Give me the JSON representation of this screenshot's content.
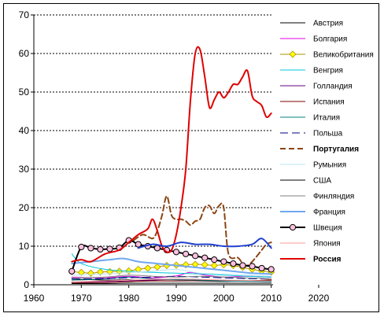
{
  "chart_data": {
    "type": "line",
    "title": "",
    "xlabel": "",
    "ylabel": "",
    "xlim": [
      1960,
      2020
    ],
    "ylim": [
      0,
      70
    ],
    "x_ticks": [
      "1960",
      "1970",
      "1980",
      "1990",
      "2000",
      "2010",
      "2020"
    ],
    "y_ticks": [
      "0",
      "10",
      "20",
      "30",
      "40",
      "50",
      "60",
      "70"
    ],
    "grid": "horizontal dashed",
    "legend_position": "right",
    "series": [
      {
        "name": "Австрия",
        "color": "#000000",
        "dash": "solid",
        "width": 1,
        "marker": "none",
        "bold": false,
        "points": [
          [
            1968,
            1.5
          ],
          [
            1975,
            1.2
          ],
          [
            1980,
            1.3
          ],
          [
            1985,
            1.0
          ],
          [
            1990,
            1.0
          ],
          [
            1995,
            1.0
          ],
          [
            2000,
            0.9
          ],
          [
            2005,
            1.0
          ],
          [
            2010,
            1.2
          ]
        ]
      },
      {
        "name": "Болгария",
        "color": "#e000e0",
        "dash": "solid",
        "width": 1,
        "marker": "none",
        "bold": false,
        "points": [
          [
            1968,
            2.0
          ],
          [
            1975,
            1.8
          ],
          [
            1980,
            2.2
          ],
          [
            1985,
            1.8
          ],
          [
            1990,
            2.3
          ],
          [
            1993,
            3.2
          ],
          [
            1996,
            2.5
          ],
          [
            2000,
            2.0
          ],
          [
            2005,
            2.2
          ],
          [
            2010,
            2.0
          ]
        ]
      },
      {
        "name": "Великобритания",
        "color": "#b09000",
        "fill": "#ffff00",
        "dash": "solid",
        "width": 1,
        "marker": "diamond",
        "bold": false,
        "points": [
          [
            1968,
            3.4
          ],
          [
            1970,
            3.2
          ],
          [
            1972,
            3.0
          ],
          [
            1974,
            3.3
          ],
          [
            1976,
            3.4
          ],
          [
            1978,
            3.5
          ],
          [
            1980,
            3.6
          ],
          [
            1982,
            4.0
          ],
          [
            1984,
            4.3
          ],
          [
            1986,
            4.6
          ],
          [
            1988,
            5.0
          ],
          [
            1990,
            5.1
          ],
          [
            1992,
            5.2
          ],
          [
            1994,
            5.3
          ],
          [
            1996,
            5.2
          ],
          [
            1998,
            5.0
          ],
          [
            2000,
            5.2
          ],
          [
            2002,
            5.0
          ],
          [
            2004,
            4.5
          ],
          [
            2006,
            4.0
          ],
          [
            2008,
            3.6
          ],
          [
            2010,
            3.3
          ]
        ]
      },
      {
        "name": "Венгрия",
        "color": "#00c8d8",
        "dash": "solid",
        "width": 1,
        "marker": "none",
        "bold": false,
        "points": [
          [
            1968,
            8.0
          ],
          [
            1970,
            5.5
          ],
          [
            1975,
            4.0
          ],
          [
            1980,
            3.5
          ],
          [
            1985,
            3.2
          ],
          [
            1990,
            3.0
          ],
          [
            1995,
            2.8
          ],
          [
            2000,
            2.5
          ],
          [
            2005,
            2.2
          ],
          [
            2010,
            2.0
          ]
        ]
      },
      {
        "name": "Голландия",
        "color": "#600080",
        "dash": "solid",
        "width": 1,
        "marker": "none",
        "bold": false,
        "points": [
          [
            1968,
            0.8
          ],
          [
            1975,
            0.8
          ],
          [
            1980,
            1.0
          ],
          [
            1985,
            1.2
          ],
          [
            1990,
            1.4
          ],
          [
            1995,
            1.3
          ],
          [
            2000,
            1.2
          ],
          [
            2005,
            1.0
          ],
          [
            2010,
            0.9
          ]
        ]
      },
      {
        "name": "Испания",
        "color": "#800000",
        "dash": "solid",
        "width": 1,
        "marker": "none",
        "bold": false,
        "points": [
          [
            1968,
            0.5
          ],
          [
            1975,
            0.6
          ],
          [
            1980,
            0.8
          ],
          [
            1985,
            1.0
          ],
          [
            1990,
            1.0
          ],
          [
            1995,
            1.1
          ],
          [
            2000,
            1.0
          ],
          [
            2005,
            1.0
          ],
          [
            2010,
            1.3
          ]
        ]
      },
      {
        "name": "Италия",
        "color": "#008080",
        "dash": "solid",
        "width": 1,
        "marker": "none",
        "bold": false,
        "points": [
          [
            1968,
            1.2
          ],
          [
            1975,
            1.5
          ],
          [
            1980,
            2.0
          ],
          [
            1985,
            1.5
          ],
          [
            1990,
            1.3
          ],
          [
            1995,
            1.2
          ],
          [
            2000,
            1.0
          ],
          [
            2005,
            0.9
          ],
          [
            2010,
            0.8
          ]
        ]
      },
      {
        "name": "Польша",
        "color": "#000080",
        "dash": "longdash",
        "width": 1,
        "marker": "none",
        "bold": false,
        "points": [
          [
            1968,
            1.5
          ],
          [
            1975,
            1.6
          ],
          [
            1980,
            1.8
          ],
          [
            1985,
            2.0
          ],
          [
            1990,
            2.2
          ],
          [
            1995,
            2.0
          ],
          [
            2000,
            1.8
          ],
          [
            2005,
            1.6
          ],
          [
            2010,
            1.6
          ]
        ]
      },
      {
        "name": "Португалия",
        "color": "#8b4513",
        "dash": "dash",
        "width": 2,
        "marker": "none",
        "bold": true,
        "points": [
          [
            1981,
            11.5
          ],
          [
            1983,
            13.0
          ],
          [
            1985,
            12.0
          ],
          [
            1986,
            14.0
          ],
          [
            1987,
            18.0
          ],
          [
            1988,
            23.0
          ],
          [
            1989,
            18.0
          ],
          [
            1990,
            17.0
          ],
          [
            1991,
            17.0
          ],
          [
            1992,
            16.5
          ],
          [
            1993,
            15.5
          ],
          [
            1994,
            16.5
          ],
          [
            1995,
            17.0
          ],
          [
            1996,
            20.0
          ],
          [
            1997,
            20.5
          ],
          [
            1998,
            18.5
          ],
          [
            1999,
            20.5
          ],
          [
            2000,
            20.0
          ],
          [
            2001,
            8.0
          ],
          [
            2003,
            7.0
          ],
          [
            2004,
            5.5
          ],
          [
            2005,
            5.0
          ],
          [
            2006,
            6.0
          ],
          [
            2008,
            9.0
          ],
          [
            2009,
            10.5
          ],
          [
            2010,
            11.0
          ]
        ]
      },
      {
        "name": "Румыния",
        "color": "#b8e4f4",
        "dash": "solid",
        "width": 1,
        "marker": "none",
        "bold": false,
        "points": [
          [
            1968,
            2.5
          ],
          [
            1975,
            2.8
          ],
          [
            1980,
            3.2
          ],
          [
            1985,
            3.5
          ],
          [
            1990,
            4.0
          ],
          [
            1995,
            3.0
          ],
          [
            2000,
            2.8
          ],
          [
            2005,
            2.5
          ],
          [
            2010,
            2.2
          ]
        ]
      },
      {
        "name": "США",
        "color": "#000000",
        "dash": "solid",
        "width": 1,
        "marker": "none",
        "bold": false,
        "points": [
          [
            1968,
            0.3
          ],
          [
            1975,
            0.3
          ],
          [
            1980,
            0.4
          ],
          [
            1985,
            0.4
          ],
          [
            1990,
            0.4
          ],
          [
            1995,
            0.4
          ],
          [
            2000,
            0.4
          ],
          [
            2005,
            0.4
          ],
          [
            2010,
            0.4
          ]
        ]
      },
      {
        "name": "Финляндия",
        "color": "#808080",
        "dash": "solid",
        "width": 1,
        "marker": "none",
        "bold": false,
        "points": [
          [
            1968,
            1.8
          ],
          [
            1975,
            2.0
          ],
          [
            1980,
            2.5
          ],
          [
            1985,
            2.2
          ],
          [
            1990,
            2.0
          ],
          [
            1995,
            2.2
          ],
          [
            2000,
            2.0
          ],
          [
            2005,
            1.8
          ],
          [
            2010,
            1.6
          ]
        ]
      },
      {
        "name": "Франция",
        "color": "#6fa8f0",
        "dash": "solid",
        "width": 2,
        "marker": "none",
        "bold": false,
        "points": [
          [
            1968,
            5.5
          ],
          [
            1972,
            6.0
          ],
          [
            1976,
            6.5
          ],
          [
            1979,
            6.8
          ],
          [
            1982,
            6.0
          ],
          [
            1986,
            5.5
          ],
          [
            1990,
            5.0
          ],
          [
            1994,
            4.5
          ],
          [
            1998,
            4.0
          ],
          [
            2002,
            3.5
          ],
          [
            2006,
            3.0
          ],
          [
            2010,
            2.8
          ]
        ]
      },
      {
        "name": "Швеция",
        "color": "#000000",
        "fill": "#ffc0e0",
        "dash": "solid",
        "width": 2,
        "marker": "circle",
        "bold": false,
        "points": [
          [
            1968,
            3.5
          ],
          [
            1970,
            9.8
          ],
          [
            1972,
            9.5
          ],
          [
            1974,
            9.2
          ],
          [
            1976,
            9.3
          ],
          [
            1978,
            9.6
          ],
          [
            1980,
            11.5
          ],
          [
            1982,
            10.5
          ],
          [
            1984,
            10.0
          ],
          [
            1986,
            9.5
          ],
          [
            1988,
            9.0
          ],
          [
            1990,
            8.5
          ],
          [
            1992,
            8.0
          ],
          [
            1994,
            7.5
          ],
          [
            1996,
            7.0
          ],
          [
            1998,
            6.5
          ],
          [
            2000,
            6.0
          ],
          [
            2002,
            5.5
          ],
          [
            2004,
            5.0
          ],
          [
            2006,
            4.8
          ],
          [
            2008,
            4.3
          ],
          [
            2010,
            4.0
          ]
        ]
      },
      {
        "name": "Япония",
        "color": "#ff9999",
        "dash": "solid",
        "width": 1,
        "marker": "none",
        "bold": false,
        "points": [
          [
            1968,
            0.8
          ],
          [
            1975,
            1.0
          ],
          [
            1980,
            1.2
          ],
          [
            1985,
            1.4
          ],
          [
            1990,
            1.5
          ],
          [
            1995,
            1.4
          ],
          [
            2000,
            1.2
          ],
          [
            2005,
            1.1
          ],
          [
            2010,
            1.0
          ]
        ]
      },
      {
        "name": "Россия",
        "color": "#e00000",
        "dash": "solid",
        "width": 2,
        "marker": "none",
        "bold": true,
        "points": [
          [
            1968,
            6.0
          ],
          [
            1970,
            6.5
          ],
          [
            1972,
            6.0
          ],
          [
            1975,
            8.0
          ],
          [
            1978,
            9.0
          ],
          [
            1980,
            11.0
          ],
          [
            1982,
            13.0
          ],
          [
            1984,
            14.5
          ],
          [
            1985,
            17.0
          ],
          [
            1986,
            14.0
          ],
          [
            1987,
            10.0
          ],
          [
            1988,
            8.5
          ],
          [
            1989,
            9.0
          ],
          [
            1990,
            13.0
          ],
          [
            1991,
            20.0
          ],
          [
            1992,
            30.0
          ],
          [
            1993,
            48.0
          ],
          [
            1994,
            60.0
          ],
          [
            1995,
            61.0
          ],
          [
            1996,
            54.0
          ],
          [
            1997,
            46.0
          ],
          [
            1998,
            48.0
          ],
          [
            1999,
            50.0
          ],
          [
            2000,
            48.5
          ],
          [
            2001,
            50.0
          ],
          [
            2002,
            52.0
          ],
          [
            2003,
            52.0
          ],
          [
            2004,
            54.0
          ],
          [
            2005,
            55.5
          ],
          [
            2006,
            49.0
          ],
          [
            2007,
            47.5
          ],
          [
            2008,
            46.5
          ],
          [
            2009,
            43.5
          ],
          [
            2010,
            44.5
          ]
        ]
      },
      {
        "name": "",
        "color": "#2040d0",
        "dash": "solid",
        "width": 2,
        "marker": "none",
        "bold": false,
        "points": [
          [
            1982,
            9.5
          ],
          [
            1985,
            10.5
          ],
          [
            1988,
            10.0
          ],
          [
            1991,
            11.0
          ],
          [
            1994,
            10.5
          ],
          [
            1997,
            10.5
          ],
          [
            2000,
            10.0
          ],
          [
            2003,
            10.0
          ],
          [
            2006,
            10.5
          ],
          [
            2008,
            12.0
          ],
          [
            2010,
            9.5
          ]
        ]
      }
    ]
  }
}
